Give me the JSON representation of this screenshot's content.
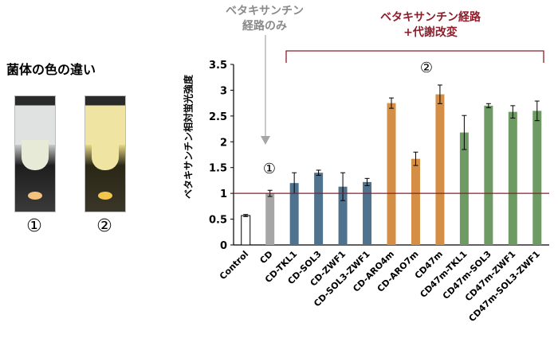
{
  "panel_left": {
    "title": "菌体の色の違い",
    "tubes": [
      {
        "label": "①",
        "pellet_color": "#f2c27e",
        "liquid_color": "#e8ead8"
      },
      {
        "label": "②",
        "pellet_color": "#f0c64c",
        "liquid_color": "#efe4a2"
      }
    ]
  },
  "annotations": {
    "gray_text": [
      "ベタキサンチン",
      "経路のみ"
    ],
    "red_text": [
      "ベタキサンチン経路",
      "+代謝改変"
    ],
    "marker_1": "①",
    "marker_2": "②"
  },
  "chart_data": {
    "type": "bar",
    "ylabel": "ベタキサンチン相対蛍光強度",
    "ylim": [
      0,
      3.5
    ],
    "yticks": [
      "0",
      "0.5",
      "1",
      "1.5",
      "2",
      "2.5",
      "3",
      "3.5"
    ],
    "categories": [
      "Control",
      "CD",
      "CD-TKL1",
      "CD-SOL3",
      "CD-ZWF1",
      "CD-SOL3-ZWF1",
      "CD-ARO4m",
      "CD-ARO7m",
      "CD47m",
      "CD47m-TKL1",
      "CD47m-SOL3",
      "CD47m-ZWF1",
      "CD47m-SOL3-ZWF1"
    ],
    "values": [
      0.57,
      1.0,
      1.2,
      1.4,
      1.13,
      1.22,
      2.75,
      1.67,
      2.92,
      2.18,
      2.7,
      2.58,
      2.6
    ],
    "errors": [
      0.02,
      0.06,
      0.2,
      0.05,
      0.27,
      0.07,
      0.1,
      0.13,
      0.18,
      0.33,
      0.04,
      0.12,
      0.19
    ],
    "bar_colors": [
      "#ffffff",
      "#a6a6a6",
      "#4f738e",
      "#4f738e",
      "#4f738e",
      "#4f738e",
      "#d58e45",
      "#d58e45",
      "#d58e45",
      "#6e9a64",
      "#6e9a64",
      "#6e9a64",
      "#6e9a64"
    ],
    "reference_line": {
      "value": 1,
      "color": "#8b1f2b"
    },
    "grid": false
  }
}
